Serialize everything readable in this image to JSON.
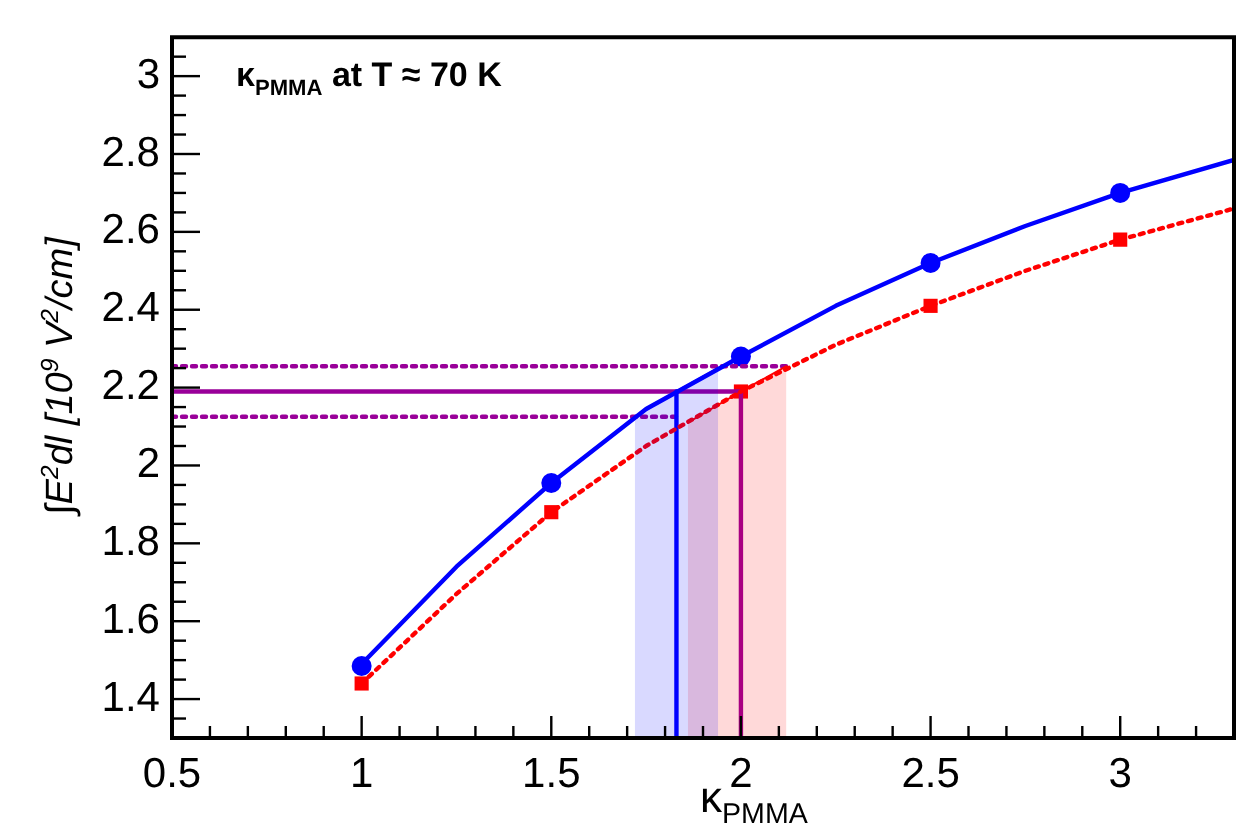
{
  "chart_data": {
    "type": "line",
    "xlabel": "κ$_{PMMA}$",
    "ylabel": "∫E$^{2}$dl  [10$^{9}$ V$^{2}$/cm]",
    "annotations": [
      "κ$_{PMMA}$ at T ≈ 70 K"
    ],
    "xlim": [
      0.5,
      3.3
    ],
    "ylim": [
      1.3,
      3.1
    ],
    "xticks": [
      0.5,
      {
        "value": 0.6,
        "label": null
      },
      {
        "value": 0.7,
        "label": null
      },
      {
        "value": 0.8,
        "label": null
      },
      {
        "value": 0.9,
        "label": null
      },
      1,
      {
        "value": 1.1,
        "label": null
      },
      {
        "value": 1.2,
        "label": null
      },
      {
        "value": 1.3,
        "label": null
      },
      {
        "value": 1.4,
        "label": null
      },
      1.5,
      {
        "value": 1.6,
        "label": null
      },
      {
        "value": 1.7,
        "label": null
      },
      {
        "value": 1.8,
        "label": null
      },
      {
        "value": 1.9,
        "label": null
      },
      2,
      {
        "value": 2.1,
        "label": null
      },
      {
        "value": 2.2,
        "label": null
      },
      {
        "value": 2.3,
        "label": null
      },
      {
        "value": 2.4,
        "label": null
      },
      2.5,
      {
        "value": 2.6,
        "label": null
      },
      {
        "value": 2.7,
        "label": null
      },
      {
        "value": 2.8,
        "label": null
      },
      {
        "value": 2.9,
        "label": null
      },
      3,
      {
        "value": 3.1,
        "label": null
      },
      {
        "value": 3.2,
        "label": null
      }
    ],
    "yticks": [
      {
        "value": 1.35,
        "label": null
      },
      1.4,
      {
        "value": 1.45,
        "label": null
      },
      {
        "value": 1.5,
        "label": null
      },
      {
        "value": 1.55,
        "label": null
      },
      1.6,
      {
        "value": 1.65,
        "label": null
      },
      {
        "value": 1.7,
        "label": null
      },
      {
        "value": 1.75,
        "label": null
      },
      1.8,
      {
        "value": 1.85,
        "label": null
      },
      {
        "value": 1.9,
        "label": null
      },
      {
        "value": 1.95,
        "label": null
      },
      2,
      {
        "value": 2.05,
        "label": null
      },
      {
        "value": 2.1,
        "label": null
      },
      {
        "value": 2.15,
        "label": null
      },
      2.2,
      {
        "value": 2.25,
        "label": null
      },
      {
        "value": 2.3,
        "label": null
      },
      {
        "value": 2.35,
        "label": null
      },
      2.4,
      {
        "value": 2.45,
        "label": null
      },
      {
        "value": 2.5,
        "label": null
      },
      {
        "value": 2.55,
        "label": null
      },
      2.6,
      {
        "value": 2.65,
        "label": null
      },
      {
        "value": 2.7,
        "label": null
      },
      {
        "value": 2.75,
        "label": null
      },
      2.8,
      {
        "value": 2.85,
        "label": null
      },
      {
        "value": 2.9,
        "label": null
      },
      {
        "value": 2.95,
        "label": null
      },
      3,
      {
        "value": 3.05,
        "label": null
      }
    ],
    "grid": false,
    "legend": false,
    "series": [
      {
        "type": "area",
        "color": "#0000ff",
        "x": [
          1.72,
          1.83,
          1.94
        ],
        "values": [
          2.125,
          2.19,
          2.25
        ]
      },
      {
        "type": "area",
        "color": "#ff0000",
        "x": [
          1.86,
          2.0,
          2.12
        ],
        "values": [
          2.11,
          2.19,
          2.255
        ]
      },
      {
        "type": "line",
        "color": "#0000ff",
        "marker": "none",
        "line_style": "solid",
        "x": [
          1,
          1.25,
          1.5,
          1.75,
          2,
          2.25,
          2.5,
          2.75,
          3,
          3.3
        ],
        "values": [
          1.49,
          1.74,
          1.955,
          2.145,
          2.28,
          2.41,
          2.52,
          2.615,
          2.7,
          2.785
        ]
      },
      {
        "type": "line",
        "color": "#ff0000",
        "marker": "none",
        "line_style": "dotted",
        "x": [
          1,
          1.25,
          1.5,
          1.75,
          2,
          2.25,
          2.5,
          2.75,
          3,
          3.3
        ],
        "values": [
          1.44,
          1.67,
          1.88,
          2.05,
          2.19,
          2.31,
          2.41,
          2.5,
          2.58,
          2.66
        ]
      },
      {
        "type": "line",
        "color": "#0000ff",
        "marker": "none",
        "line_style": "solid",
        "x": [
          1.83,
          1.83
        ],
        "values": [
          1.3,
          2.19
        ]
      },
      {
        "type": "line",
        "color": "#990099",
        "marker": "none",
        "line_style": "solid",
        "x": [
          2.0,
          2.0
        ],
        "values": [
          1.3,
          2.19
        ]
      },
      {
        "type": "line",
        "color": "#990099",
        "marker": "none",
        "line_style": "solid",
        "x": [
          0.5,
          2.0
        ],
        "values": [
          2.19,
          2.19
        ]
      },
      {
        "type": "line",
        "color": "#990099",
        "marker": "none",
        "line_style": "dotted",
        "x": [
          0.5,
          2.12
        ],
        "values": [
          2.255,
          2.255
        ]
      },
      {
        "type": "line",
        "color": "#990099",
        "marker": "none",
        "line_style": "dotted",
        "x": [
          0.5,
          1.84
        ],
        "values": [
          2.125,
          2.125
        ]
      },
      {
        "type": "scatter",
        "color": "#0000ff",
        "marker": "circle",
        "x": [
          1,
          1.5,
          2,
          2.5,
          3
        ],
        "values": [
          1.485,
          1.955,
          2.28,
          2.52,
          2.7
        ]
      },
      {
        "type": "scatter",
        "color": "#ff0000",
        "marker": "square",
        "x": [
          1,
          1.5,
          2,
          2.5,
          3
        ],
        "values": [
          1.44,
          1.88,
          2.19,
          2.41,
          2.58
        ]
      }
    ]
  }
}
